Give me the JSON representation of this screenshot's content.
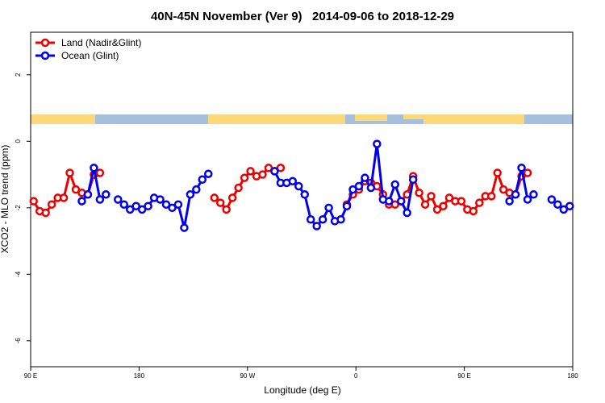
{
  "chart_data": {
    "type": "line",
    "title": "40N-45N November (Ver 9)   2014-09-06 to 2018-12-29",
    "xlabel": "Longitude (deg E)",
    "ylabel": "XCO2 - MLO trend (ppm)",
    "x": [
      92.5,
      97.5,
      102.5,
      107.5,
      112.5,
      117.5,
      122.5,
      127.5,
      132.5,
      137.5,
      142.5,
      147.5,
      152.5,
      157.5,
      162.5,
      167.5,
      172.5,
      177.5,
      182.5,
      187.5,
      192.5,
      197.5,
      202.5,
      207.5,
      212.5,
      217.5,
      222.5,
      227.5,
      232.5,
      237.5,
      242.5,
      247.5,
      252.5,
      257.5,
      262.5,
      267.5,
      272.5,
      277.5,
      282.5,
      287.5,
      292.5,
      297.5,
      302.5,
      307.5,
      312.5,
      317.5,
      322.5,
      327.5,
      332.5,
      337.5,
      342.5,
      347.5,
      352.5,
      357.5,
      362.5,
      367.5,
      372.5,
      377.5,
      382.5,
      387.5,
      392.5,
      397.5,
      402.5,
      407.5,
      412.5,
      417.5,
      422.5,
      427.5,
      432.5,
      437.5,
      442.5,
      447.5,
      452.5,
      457.5,
      462.5,
      467.5,
      472.5,
      477.5,
      482.5,
      487.5,
      492.5,
      497.5,
      502.5,
      507.5,
      512.5,
      517.5,
      522.5,
      527.5,
      532.5,
      537.5
    ],
    "series": [
      {
        "name": "Land (Nadir&Glint)",
        "color": "#ee0000",
        "values": [
          -1.8,
          -2.1,
          -2.15,
          -1.9,
          -1.7,
          -1.7,
          -0.95,
          -1.45,
          -1.55,
          -1.6,
          -1.0,
          -0.95,
          null,
          null,
          null,
          null,
          null,
          null,
          null,
          null,
          null,
          null,
          null,
          null,
          null,
          null,
          null,
          null,
          null,
          null,
          -1.7,
          -1.85,
          -2.05,
          -1.7,
          -1.4,
          -1.1,
          -0.9,
          -1.05,
          -1.0,
          -0.8,
          -0.9,
          -0.8,
          null,
          null,
          null,
          null,
          null,
          null,
          null,
          null,
          null,
          null,
          -1.9,
          -1.6,
          -1.45,
          -1.2,
          -1.25,
          -1.35,
          -1.6,
          -1.9,
          -1.9,
          -1.8,
          -1.6,
          -1.05,
          -1.55,
          -1.9,
          -1.65,
          -2.05,
          -1.95,
          -1.7,
          -1.8,
          -1.8,
          -2.05,
          -2.1,
          -1.85,
          -1.65,
          -1.65,
          -0.95,
          -1.45,
          -1.55,
          -1.6,
          -1.05,
          -0.95,
          null,
          null,
          null,
          null,
          null,
          null,
          null
        ]
      },
      {
        "name": "Ocean (Glint)",
        "color": "#0000ee",
        "values": [
          null,
          null,
          null,
          null,
          null,
          null,
          null,
          null,
          -1.8,
          -1.6,
          -0.8,
          -1.75,
          -1.6,
          null,
          -1.75,
          -1.9,
          -2.05,
          -1.95,
          -2.05,
          -1.95,
          -1.7,
          -1.75,
          -1.9,
          -2.0,
          -1.9,
          -2.6,
          -1.6,
          -1.45,
          -1.15,
          -0.98,
          null,
          null,
          null,
          null,
          null,
          null,
          null,
          null,
          null,
          null,
          -0.9,
          -1.25,
          -1.25,
          -1.2,
          -1.35,
          -1.6,
          -2.35,
          -2.55,
          -2.35,
          -2.0,
          -2.4,
          -2.35,
          -1.95,
          -1.45,
          -1.35,
          -1.1,
          -1.4,
          -0.08,
          -1.75,
          -1.8,
          -1.3,
          -1.8,
          -2.15,
          -1.15,
          null,
          null,
          null,
          null,
          null,
          null,
          null,
          null,
          null,
          null,
          null,
          null,
          null,
          null,
          null,
          -1.8,
          -1.6,
          -0.8,
          -1.75,
          -1.6,
          null,
          null,
          -1.75,
          -1.9,
          -2.05,
          -1.95
        ]
      }
    ],
    "xlim": [
      90,
      540
    ],
    "xticks": [
      {
        "value": 90,
        "label": "90 E"
      },
      180,
      {
        "value": 270,
        "label": "90 W"
      },
      {
        "value": 360,
        "label": "0"
      },
      {
        "value": 450,
        "label": "90 E"
      },
      {
        "value": 540,
        "label": "180"
      }
    ],
    "ylim": [
      -6.78,
      3.28
    ],
    "yticks": [
      -6,
      -4,
      -2,
      0,
      2
    ],
    "legend": "upper left"
  }
}
